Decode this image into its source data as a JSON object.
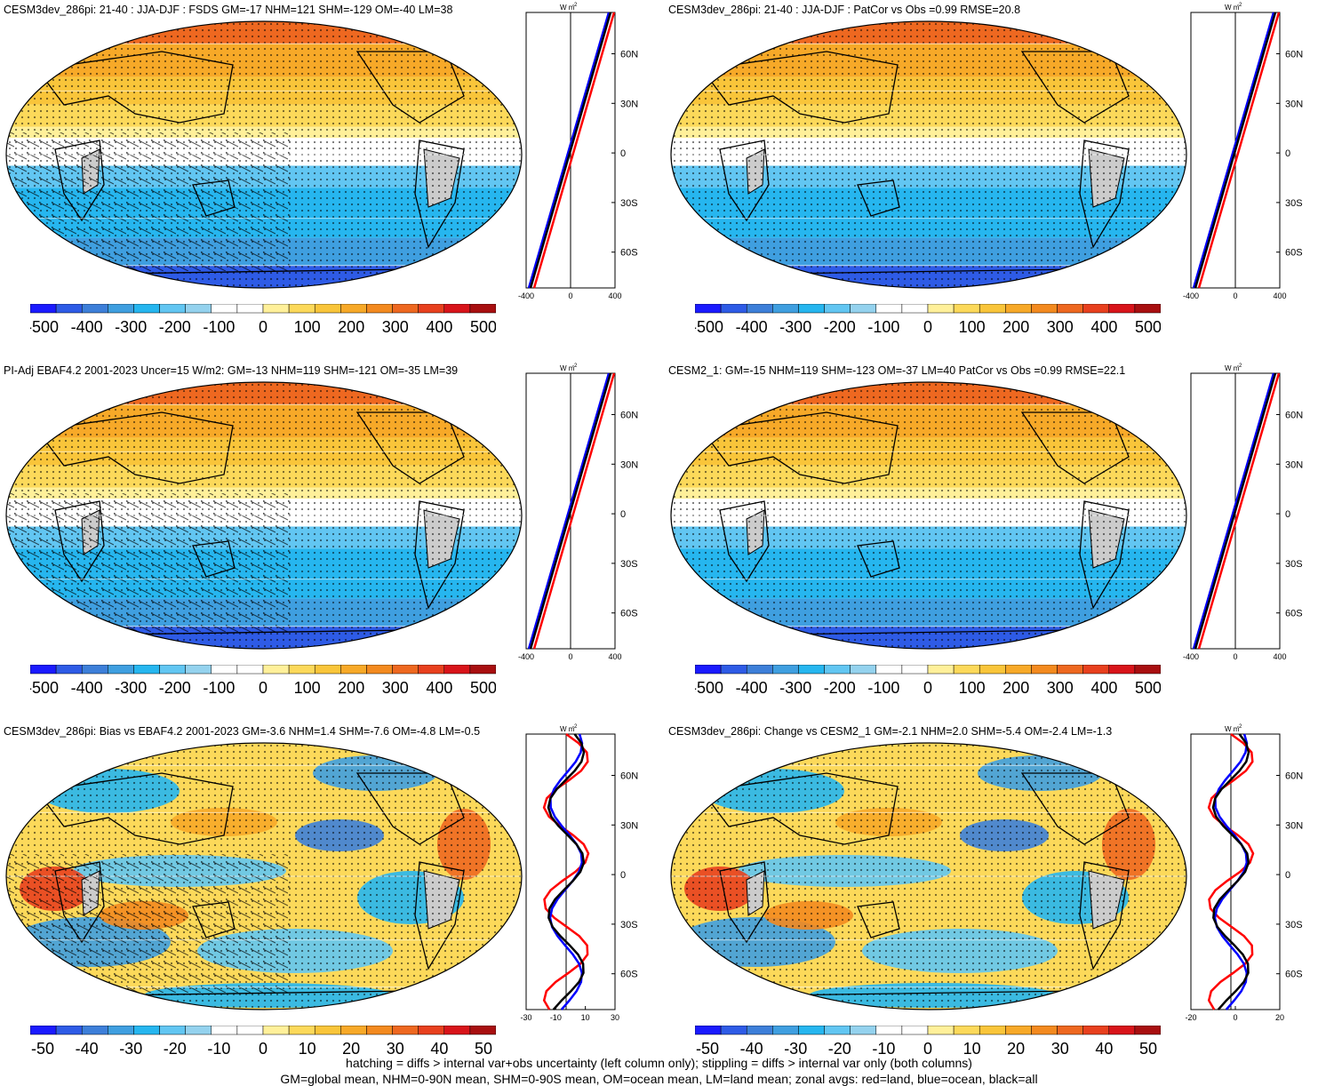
{
  "panels": [
    {
      "title": "CESM3dev_286pi: 21-40 : JJA-DJF : FSDS GM=-17 NHM=121 SHM=-129 OM=-40 LM=38",
      "scheme": "mean",
      "zonal_unit": "W m",
      "zonal_unit_exp": "-2",
      "zonal_ticks": [
        "-400",
        "0",
        "400"
      ],
      "lat_labels": [
        "60N",
        "30N",
        "0",
        "30S",
        "60S"
      ],
      "colorbar_labels": [
        "-500",
        "-400",
        "-300",
        "-200",
        "-100",
        "0",
        "100",
        "200",
        "300",
        "400",
        "500"
      ]
    },
    {
      "title": "CESM3dev_286pi: 21-40 : JJA-DJF : PatCor vs Obs =0.99 RMSE=20.8",
      "scheme": "mean",
      "zonal_unit": "W m",
      "zonal_unit_exp": "-2",
      "zonal_ticks": [
        "-400",
        "0",
        "400"
      ],
      "lat_labels": [
        "60N",
        "30N",
        "0",
        "30S",
        "60S"
      ],
      "colorbar_labels": [
        "-500",
        "-400",
        "-300",
        "-200",
        "-100",
        "0",
        "100",
        "200",
        "300",
        "400",
        "500"
      ]
    },
    {
      "title": "PI-Adj EBAF4.2 2001-2023 Uncer=15 W/m2: GM=-13 NHM=119 SHM=-121 OM=-35 LM=39",
      "scheme": "mean",
      "zonal_unit": "W m",
      "zonal_unit_exp": "-2",
      "zonal_ticks": [
        "-400",
        "0",
        "400"
      ],
      "lat_labels": [
        "60N",
        "30N",
        "0",
        "30S",
        "60S"
      ],
      "colorbar_labels": [
        "-500",
        "-400",
        "-300",
        "-200",
        "-100",
        "0",
        "100",
        "200",
        "300",
        "400",
        "500"
      ]
    },
    {
      "title": "CESM2_1: GM=-15 NHM=119 SHM=-123 OM=-37 LM=40 PatCor vs Obs =0.99 RMSE=22.1",
      "scheme": "mean",
      "zonal_unit": "W m",
      "zonal_unit_exp": "-2",
      "zonal_ticks": [
        "-400",
        "0",
        "400"
      ],
      "lat_labels": [
        "60N",
        "30N",
        "0",
        "30S",
        "60S"
      ],
      "colorbar_labels": [
        "-500",
        "-400",
        "-300",
        "-200",
        "-100",
        "0",
        "100",
        "200",
        "300",
        "400",
        "500"
      ]
    },
    {
      "title": "CESM3dev_286pi: Bias vs EBAF4.2 2001-2023 GM=-3.6 NHM=1.4 SHM=-7.6 OM=-4.8 LM=-0.5",
      "scheme": "diff",
      "zonal_unit": "W m",
      "zonal_unit_exp": "-2",
      "zonal_ticks": [
        "-30",
        "-10",
        "10",
        "30"
      ],
      "lat_labels": [
        "60N",
        "30N",
        "0",
        "30S",
        "60S"
      ],
      "colorbar_labels": [
        "-50",
        "-40",
        "-30",
        "-20",
        "-10",
        "0",
        "10",
        "20",
        "30",
        "40",
        "50"
      ]
    },
    {
      "title": "CESM3dev_286pi: Change vs CESM2_1 GM=-2.1 NHM=2.0 SHM=-5.4 OM=-2.4 LM=-1.3",
      "scheme": "diff",
      "zonal_unit": "W m",
      "zonal_unit_exp": "-2",
      "zonal_ticks": [
        "-20",
        "0",
        "20"
      ],
      "lat_labels": [
        "60N",
        "30N",
        "0",
        "30S",
        "60S"
      ],
      "colorbar_labels": [
        "-50",
        "-40",
        "-30",
        "-20",
        "-10",
        "0",
        "10",
        "20",
        "30",
        "40",
        "50"
      ]
    }
  ],
  "colors": {
    "scale": [
      "#1a1aff",
      "#2e5be6",
      "#3d7fd9",
      "#3f9fe0",
      "#26b6ef",
      "#62c6f2",
      "#94d2ee",
      "#ffffff",
      "#ffffff",
      "#fff09a",
      "#fcd95a",
      "#f9c53a",
      "#f7a928",
      "#f38a1f",
      "#ee6820",
      "#e8401e",
      "#d8141a",
      "#a80f10"
    ],
    "land_gray": "#cccccc",
    "zonal_land": "#ff0000",
    "zonal_ocean": "#0000ff",
    "zonal_all": "#000000"
  },
  "footnotes": {
    "line1": "hatching = diffs > internal var+obs uncertainty (left column only); stippling = diffs > internal var only (both columns)",
    "line2": "GM=global mean, NHM=0-90N mean, SHM=0-90S mean, OM=ocean mean, LM=land mean; zonal avgs: red=land, blue=ocean, black=all"
  }
}
